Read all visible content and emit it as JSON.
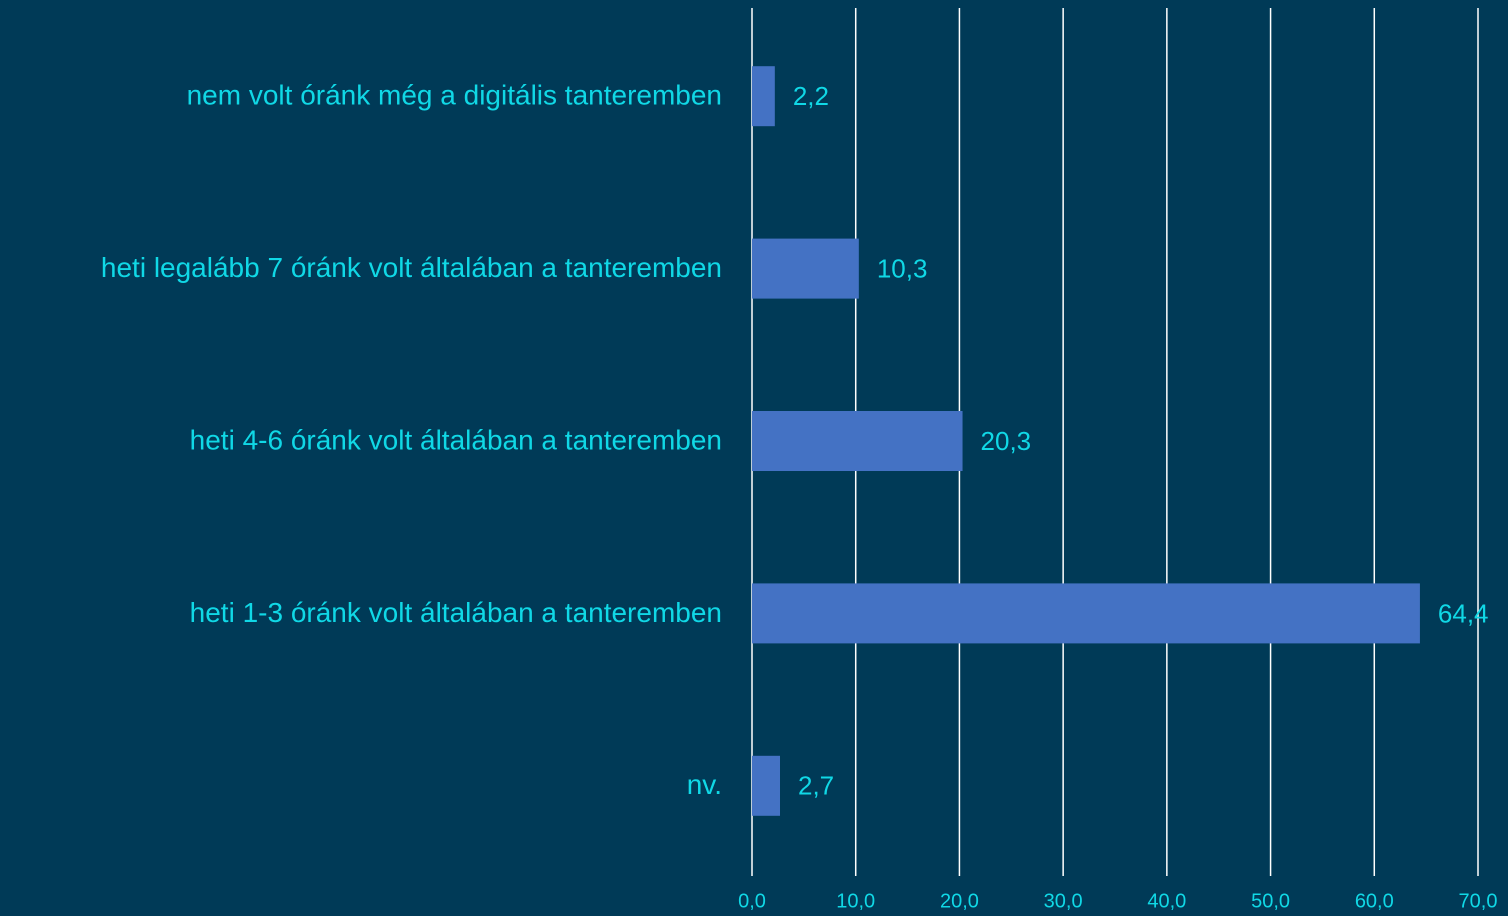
{
  "chart_data": {
    "type": "bar",
    "orientation": "horizontal",
    "categories": [
      "nem volt óránk még a digitális tanteremben",
      "heti legalább 7 óránk volt általában a tanteremben",
      "heti 4-6 óránk volt általában a tanteremben",
      "heti 1-3 óránk volt általában a tanteremben",
      "nv."
    ],
    "values": [
      2.2,
      10.3,
      20.3,
      64.4,
      2.7
    ],
    "value_labels": [
      "2,2",
      "10,3",
      "20,3",
      "64,4",
      "2,7"
    ],
    "color": "#4472c4",
    "xlim": [
      0,
      70
    ],
    "xticks": [
      {
        "value": 0,
        "label": "0,0"
      },
      {
        "value": 10,
        "label": "10,0"
      },
      {
        "value": 20,
        "label": "20,0"
      },
      {
        "value": 30,
        "label": "30,0"
      },
      {
        "value": 40,
        "label": "40,0"
      },
      {
        "value": 50,
        "label": "50,0"
      },
      {
        "value": 60,
        "label": "60,0"
      },
      {
        "value": 70,
        "label": "70,0"
      }
    ],
    "grid": true
  }
}
